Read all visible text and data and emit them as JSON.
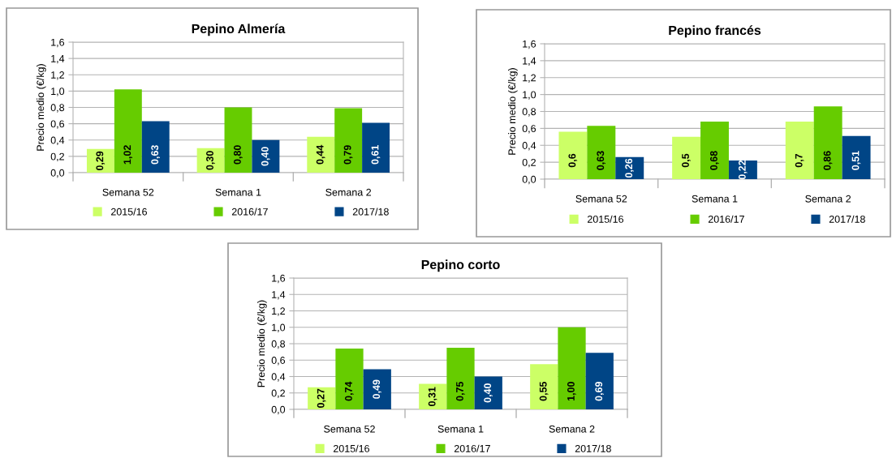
{
  "chart_data": [
    {
      "type": "bar",
      "title": "Pepino Almería",
      "ylabel": "Precio medio (€/kg)",
      "categories": [
        "Semana 52",
        "Semana 1",
        "Semana 2"
      ],
      "ylim": [
        0,
        1.6
      ],
      "yticks": [
        {
          "value": 0,
          "label": "0,0"
        },
        {
          "value": 0.2,
          "label": "0,2"
        },
        {
          "value": 0.4,
          "label": "0,4"
        },
        {
          "value": 0.6,
          "label": "0,6"
        },
        {
          "value": 0.8,
          "label": "0,8"
        },
        {
          "value": 1.0,
          "label": "1,0"
        },
        {
          "value": 1.2,
          "label": "1,2"
        },
        {
          "value": 1.4,
          "label": "1,4"
        },
        {
          "value": 1.6,
          "label": "1,6"
        }
      ],
      "grid": "y",
      "legend": "bottom",
      "series": [
        {
          "name": "2015/16",
          "color": "#ccff66",
          "values": [
            0.29,
            0.3,
            0.44
          ],
          "value_labels": [
            "0,29",
            "0,30",
            "0,44"
          ]
        },
        {
          "name": "2016/17",
          "color": "#66cc00",
          "values": [
            1.02,
            0.8,
            0.79
          ],
          "value_labels": [
            "1,02",
            "0,80",
            "0,79"
          ]
        },
        {
          "name": "2017/18",
          "color": "#004586",
          "values": [
            0.63,
            0.4,
            0.61
          ],
          "value_labels": [
            "0,63",
            "0,40",
            "0,61"
          ]
        }
      ]
    },
    {
      "type": "bar",
      "title": "Pepino francés",
      "ylabel": "Precio medio (€/kg)",
      "categories": [
        "Semana 52",
        "Semana 1",
        "Semana 2"
      ],
      "ylim": [
        0,
        1.6
      ],
      "yticks": [
        {
          "value": 0,
          "label": "0,0"
        },
        {
          "value": 0.2,
          "label": "0,2"
        },
        {
          "value": 0.4,
          "label": "0,4"
        },
        {
          "value": 0.6,
          "label": "0,6"
        },
        {
          "value": 0.8,
          "label": "0,8"
        },
        {
          "value": 1.0,
          "label": "1,0"
        },
        {
          "value": 1.2,
          "label": "1,2"
        },
        {
          "value": 1.4,
          "label": "1,4"
        },
        {
          "value": 1.6,
          "label": "1,6"
        }
      ],
      "grid": "y",
      "legend": "bottom",
      "series": [
        {
          "name": "2015/16",
          "color": "#ccff66",
          "values": [
            0.56,
            0.5,
            0.68
          ],
          "value_labels": [
            "0,6",
            "0,5",
            "0,7"
          ]
        },
        {
          "name": "2016/17",
          "color": "#66cc00",
          "values": [
            0.63,
            0.68,
            0.86
          ],
          "value_labels": [
            "0,63",
            "0,68",
            "0,86"
          ]
        },
        {
          "name": "2017/18",
          "color": "#004586",
          "values": [
            0.26,
            0.22,
            0.51
          ],
          "value_labels": [
            "0,26",
            "0,22",
            "0,51"
          ]
        }
      ]
    },
    {
      "type": "bar",
      "title": "Pepino corto",
      "ylabel": "Precio medio (€/kg)",
      "categories": [
        "Semana 52",
        "Semana 1",
        "Semana 2"
      ],
      "ylim": [
        0,
        1.6
      ],
      "yticks": [
        {
          "value": 0,
          "label": "0,0"
        },
        {
          "value": 0.2,
          "label": "0,2"
        },
        {
          "value": 0.4,
          "label": "0,4"
        },
        {
          "value": 0.6,
          "label": "0,6"
        },
        {
          "value": 0.8,
          "label": "0,8"
        },
        {
          "value": 1.0,
          "label": "1,0"
        },
        {
          "value": 1.2,
          "label": "1,2"
        },
        {
          "value": 1.4,
          "label": "1,4"
        },
        {
          "value": 1.6,
          "label": "1,6"
        }
      ],
      "grid": "y",
      "legend": "bottom",
      "series": [
        {
          "name": "2015/16",
          "color": "#ccff66",
          "values": [
            0.27,
            0.31,
            0.55
          ],
          "value_labels": [
            "0,27",
            "0,31",
            "0,55"
          ]
        },
        {
          "name": "2016/17",
          "color": "#66cc00",
          "values": [
            0.74,
            0.75,
            1.0
          ],
          "value_labels": [
            "0,74",
            "0,75",
            "1,00"
          ]
        },
        {
          "name": "2017/18",
          "color": "#004586",
          "values": [
            0.49,
            0.4,
            0.69
          ],
          "value_labels": [
            "0,49",
            "0,40",
            "0,69"
          ]
        }
      ]
    }
  ]
}
